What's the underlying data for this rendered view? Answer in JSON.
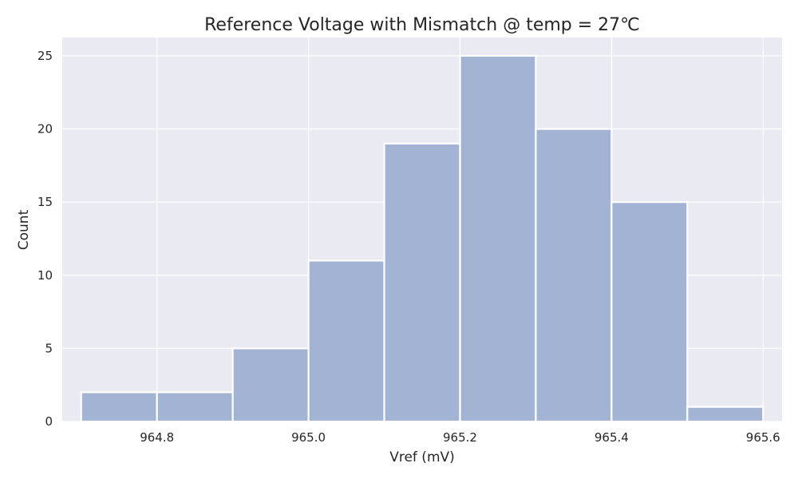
{
  "chart_data": {
    "type": "bar",
    "subtype": "histogram",
    "title": "Reference Voltage with Mismatch @ temp = 27℃",
    "xlabel": "Vref (mV)",
    "ylabel": "Count",
    "bin_edges": [
      964.7,
      964.8,
      964.9,
      965.0,
      965.1,
      965.2,
      965.3,
      965.4,
      965.5,
      965.6
    ],
    "values": [
      2,
      2,
      5,
      11,
      19,
      25,
      20,
      15,
      1
    ],
    "xlim": [
      964.675,
      965.625
    ],
    "ylim": [
      0,
      26.25
    ],
    "x_ticks": [
      964.8,
      965.0,
      965.2,
      965.4,
      965.6
    ],
    "x_tick_labels": [
      "964.8",
      "965.0",
      "965.2",
      "965.4",
      "965.6"
    ],
    "y_ticks": [
      0,
      5,
      10,
      15,
      20,
      25
    ],
    "y_tick_labels": [
      "0",
      "5",
      "10",
      "15",
      "20",
      "25"
    ],
    "grid": true,
    "bar_color": "#a3b3d4",
    "plot_background": "#eaeaf2",
    "grid_color": "#ffffff"
  }
}
